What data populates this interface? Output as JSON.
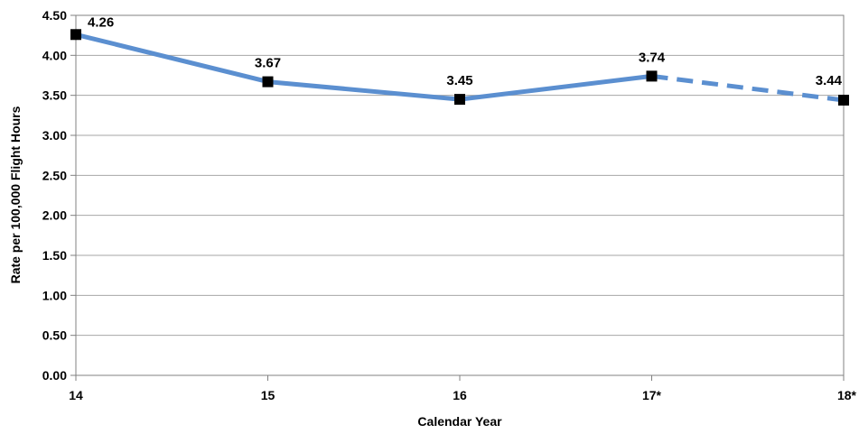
{
  "chart_data": {
    "type": "line",
    "title": "",
    "xlabel": "Calendar Year",
    "ylabel": "Rate per 100,000 Flight Hours",
    "categories": [
      "14",
      "15",
      "16",
      "17*",
      "18*"
    ],
    "ylim": [
      0,
      4.5
    ],
    "yticks": [
      0,
      0.5,
      1.0,
      1.5,
      2.0,
      2.5,
      3.0,
      3.5,
      4.0,
      4.5
    ],
    "ytick_labels": [
      "0.00",
      "0.50",
      "1.00",
      "1.50",
      "2.00",
      "2.50",
      "3.00",
      "3.50",
      "4.00",
      "4.50"
    ],
    "grid": true,
    "legend": "none",
    "series": [
      {
        "values": [
          4.26,
          3.67,
          3.45,
          3.74,
          3.44
        ],
        "data_labels": [
          "4.26",
          "3.67",
          "3.45",
          "3.74",
          "3.44"
        ],
        "line_color": "#5B8FD0",
        "marker_color": "#000000",
        "marker": "square",
        "dashed_from_index": 3
      }
    ]
  }
}
